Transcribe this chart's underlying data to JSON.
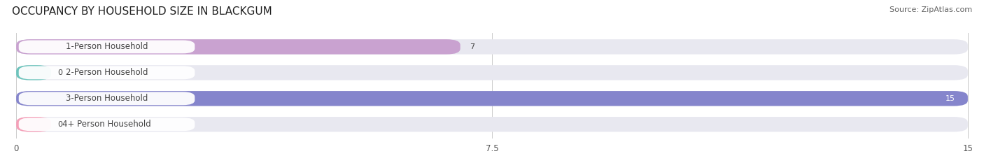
{
  "title": "OCCUPANCY BY HOUSEHOLD SIZE IN BLACKGUM",
  "source": "Source: ZipAtlas.com",
  "categories": [
    "1-Person Household",
    "2-Person Household",
    "3-Person Household",
    "4+ Person Household"
  ],
  "values": [
    7,
    0,
    15,
    0
  ],
  "bar_colors": [
    "#c9a2d0",
    "#6dc4bc",
    "#8585cc",
    "#f5a0b8"
  ],
  "bar_bg_color": "#e8e8f0",
  "xlim": [
    0,
    15
  ],
  "xticks": [
    0,
    7.5,
    15
  ],
  "xtick_labels": [
    "0",
    "7.5",
    "15"
  ],
  "title_fontsize": 11,
  "label_fontsize": 8.5,
  "value_fontsize": 8,
  "source_fontsize": 8,
  "background_color": "#ffffff",
  "label_box_color": "#ffffff",
  "label_text_color": "#444444",
  "value_text_color_dark": "#444444",
  "value_text_color_light": "#ffffff"
}
